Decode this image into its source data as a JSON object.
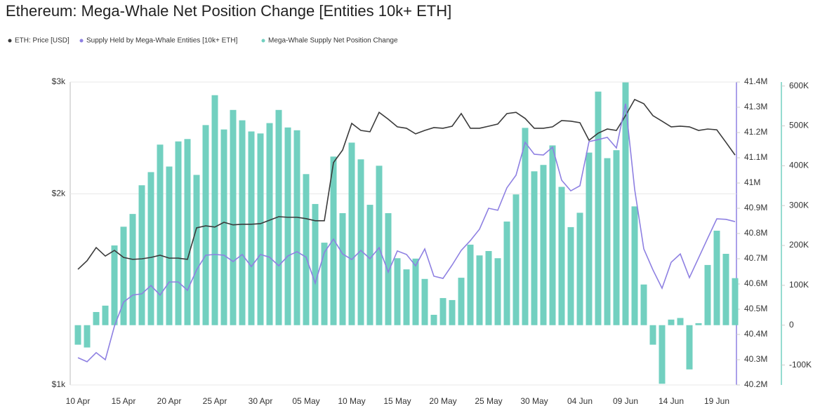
{
  "chart_data": {
    "type": "combo",
    "title": "Ethereum: Mega-Whale Net Position Change [Entities 10k+ ETH]",
    "categories": [
      "10 Apr",
      null,
      null,
      null,
      null,
      "15 Apr",
      null,
      null,
      null,
      null,
      "20 Apr",
      null,
      null,
      null,
      null,
      "25 Apr",
      null,
      null,
      null,
      null,
      "30 Apr",
      null,
      null,
      null,
      null,
      "05 May",
      null,
      null,
      null,
      null,
      "10 May",
      null,
      null,
      null,
      null,
      "15 May",
      null,
      null,
      null,
      null,
      "20 May",
      null,
      null,
      null,
      null,
      "25 May",
      null,
      null,
      null,
      null,
      "30 May",
      null,
      null,
      null,
      null,
      "04 Jun",
      null,
      null,
      null,
      null,
      "09 Jun",
      null,
      null,
      null,
      null,
      "14 Jun",
      null,
      null,
      null,
      null,
      "19 Jun",
      null,
      null
    ],
    "series": [
      {
        "name": "ETH: Price [USD]",
        "color": "#3a3a3a",
        "type": "line",
        "axis": "y",
        "values": [
          1521,
          1569,
          1646,
          1596,
          1629,
          1588,
          1577,
          1580,
          1588,
          1601,
          1584,
          1584,
          1577,
          1768,
          1781,
          1773,
          1804,
          1787,
          1791,
          1791,
          1795,
          1818,
          1841,
          1837,
          1837,
          1828,
          1814,
          1814,
          2240,
          2344,
          2582,
          2517,
          2505,
          2688,
          2622,
          2550,
          2537,
          2486,
          2517,
          2543,
          2537,
          2556,
          2676,
          2537,
          2537,
          2556,
          2576,
          2676,
          2688,
          2629,
          2537,
          2537,
          2550,
          2609,
          2603,
          2589,
          2429,
          2492,
          2530,
          2517,
          2656,
          2816,
          2773,
          2656,
          2603,
          2550,
          2556,
          2550,
          2517,
          2530,
          2523,
          2411,
          2302
        ]
      },
      {
        "name": "Supply Held by Mega-Whale Entities [10k+ ETH]",
        "color": "#8e80e2",
        "type": "line",
        "axis": "y2",
        "values": [
          40308000,
          40292000,
          40328000,
          40300000,
          40433000,
          40528000,
          40556000,
          40561000,
          40594000,
          40556000,
          40608000,
          40608000,
          40575000,
          40656000,
          40714000,
          40717000,
          40714000,
          40689000,
          40717000,
          40669000,
          40717000,
          40706000,
          40672000,
          40711000,
          40728000,
          40706000,
          40603000,
          40725000,
          40778000,
          40719000,
          40697000,
          40733000,
          40700000,
          40744000,
          40647000,
          40731000,
          40717000,
          40672000,
          40739000,
          40631000,
          40622000,
          40675000,
          40733000,
          40772000,
          40817000,
          40900000,
          40892000,
          40981000,
          41031000,
          41161000,
          41114000,
          41111000,
          41142000,
          41011000,
          40969000,
          40989000,
          41164000,
          41172000,
          41181000,
          41139000,
          41314000,
          40975000,
          40739000,
          40656000,
          40583000,
          40686000,
          40719000,
          40625000,
          40703000,
          40781000,
          40858000,
          40856000,
          40847000
        ]
      },
      {
        "name": "Mega-Whale Supply Net Position Change",
        "color": "#72d0c0",
        "type": "bar",
        "axis": "y3",
        "values": [
          -49000,
          -56000,
          33000,
          49000,
          200000,
          247000,
          279000,
          351000,
          384000,
          453000,
          398000,
          461000,
          467000,
          377000,
          502000,
          577000,
          491000,
          540000,
          514000,
          486000,
          481000,
          507000,
          540000,
          496000,
          489000,
          379000,
          304000,
          207000,
          423000,
          281000,
          458000,
          416000,
          302000,
          400000,
          281000,
          168000,
          140000,
          167000,
          116000,
          26000,
          68000,
          63000,
          119000,
          202000,
          175000,
          186000,
          168000,
          260000,
          328000,
          495000,
          386000,
          402000,
          451000,
          347000,
          246000,
          282000,
          433000,
          586000,
          419000,
          439000,
          609000,
          298000,
          102000,
          -49000,
          -147000,
          14000,
          18000,
          -111000,
          5000,
          151000,
          237000,
          179000,
          118000
        ]
      }
    ],
    "ylim": [
      1000,
      3000
    ],
    "log_y": true,
    "yticks": [
      {
        "value": 1000,
        "label": "$1k"
      },
      {
        "value": 2000,
        "label": "$2k"
      },
      {
        "value": 3000,
        "label": "$3k"
      }
    ],
    "grid": true,
    "y2lim": [
      40200000,
      41400000
    ],
    "y2ticks": [
      {
        "value": 40200000,
        "label": "40.2M"
      },
      {
        "value": 40300000,
        "label": "40.3M"
      },
      {
        "value": 40400000,
        "label": "40.4M"
      },
      {
        "value": 40500000,
        "label": "40.5M"
      },
      {
        "value": 40600000,
        "label": "40.6M"
      },
      {
        "value": 40700000,
        "label": "40.7M"
      },
      {
        "value": 40800000,
        "label": "40.8M"
      },
      {
        "value": 40900000,
        "label": "40.9M"
      },
      {
        "value": 41000000,
        "label": "41M"
      },
      {
        "value": 41100000,
        "label": "41.1M"
      },
      {
        "value": 41200000,
        "label": "41.2M"
      },
      {
        "value": 41300000,
        "label": "41.3M"
      },
      {
        "value": 41400000,
        "label": "41.4M"
      }
    ],
    "y3lim": [
      -150000,
      610000
    ],
    "y3ticks": [
      {
        "value": -100000,
        "label": "-100K"
      },
      0,
      {
        "value": 100000,
        "label": "100K"
      },
      {
        "value": 200000,
        "label": "200K"
      },
      {
        "value": 300000,
        "label": "300K"
      },
      {
        "value": 400000,
        "label": "400K"
      },
      {
        "value": 500000,
        "label": "500K"
      },
      {
        "value": 600000,
        "label": "600K"
      }
    ]
  }
}
